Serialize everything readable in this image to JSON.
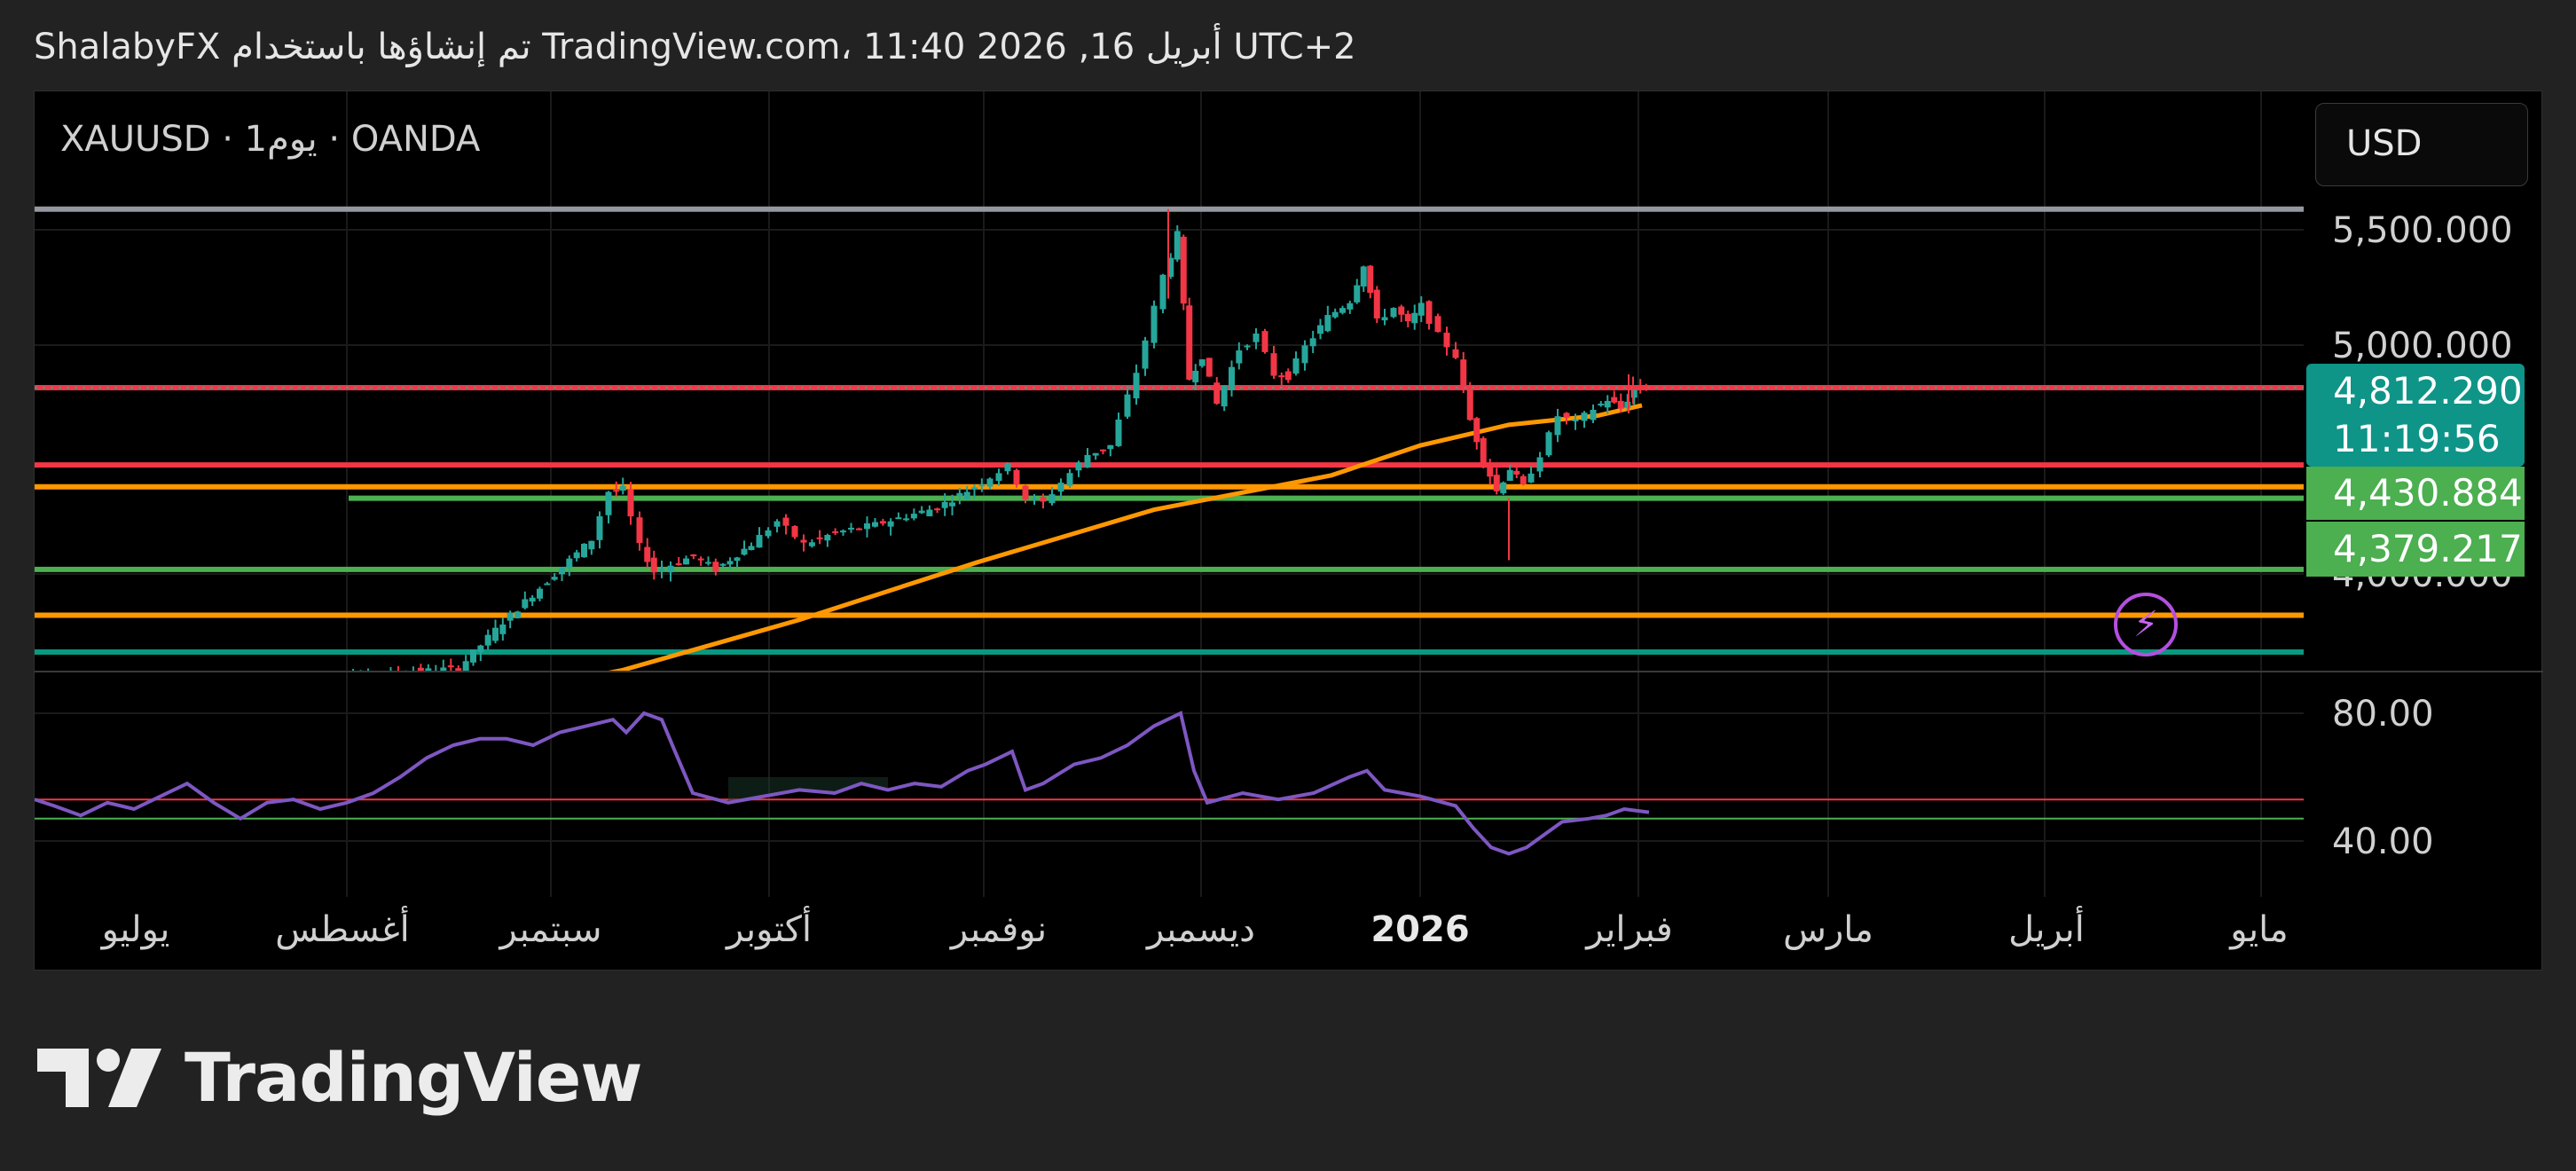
{
  "header": {
    "caption": "ShalabyFX تم إنشاؤها باستخدام TradingView.com، 11:40 2026 ,16 أبريل UTC+2"
  },
  "chart_header": {
    "symbol_line": "XAUUSD · 1يوم · OANDA",
    "currency": "USD"
  },
  "price_tags": {
    "last_price": "4,812.290",
    "countdown": "11:19:56",
    "level_1": "4,430.884",
    "level_2": "4,379.217"
  },
  "logo": {
    "text": "TradingView",
    "icon": "tradingview-logo-icon"
  },
  "colors": {
    "up": "#26a69a",
    "down": "#f23645",
    "ma": "#ff9800",
    "rsi": "#7e57c2",
    "red_line": "#f23645",
    "green_line": "#4caf50",
    "orange_line": "#ff9800",
    "teal_line": "#089981",
    "gray_line": "#9598a1"
  },
  "chart_data": {
    "type": "candlestick",
    "symbol": "XAUUSD",
    "interval": "1D",
    "broker": "OANDA",
    "x_ticks": [
      {
        "label": "يوليو",
        "bold": false
      },
      {
        "label": "أغسطس",
        "bold": false
      },
      {
        "label": "سبتمبر",
        "bold": false
      },
      {
        "label": "أكتوبر",
        "bold": false
      },
      {
        "label": "نوفمبر",
        "bold": false
      },
      {
        "label": "ديسمبر",
        "bold": false
      },
      {
        "label": "2026",
        "bold": true
      },
      {
        "label": "فبراير",
        "bold": false
      },
      {
        "label": "مارس",
        "bold": false
      },
      {
        "label": "أبريل",
        "bold": false
      },
      {
        "label": "مايو",
        "bold": false
      }
    ],
    "price_axis": {
      "ticks": [
        "5,500.000",
        "5,000.000",
        "4,000.000"
      ],
      "ylim": [
        3500,
        5760
      ]
    },
    "rsi_axis": {
      "ticks": [
        "80.00",
        "40.00"
      ],
      "ylim": [
        25,
        90
      ],
      "levels": [
        53,
        47
      ]
    },
    "horizontal_lines": [
      {
        "price": 5590,
        "color": "gray"
      },
      {
        "price": 4812,
        "color": "red"
      },
      {
        "price": 4475,
        "color": "red"
      },
      {
        "price": 4380,
        "color": "orange"
      },
      {
        "price": 4330,
        "color": "green"
      },
      {
        "price": 4020,
        "color": "green"
      },
      {
        "price": 3820,
        "color": "orange"
      },
      {
        "price": 3660,
        "color": "teal"
      }
    ],
    "segments": [
      {
        "start": 342,
        "end": 520,
        "close": 3590,
        "up": 1
      },
      {
        "start": 520,
        "end": 570,
        "close": 3790,
        "up": 1
      },
      {
        "start": 570,
        "end": 670,
        "close": 4150,
        "up": 1
      },
      {
        "start": 670,
        "end": 690,
        "close": 4360,
        "up": 1
      },
      {
        "start": 690,
        "end": 705,
        "close": 4370,
        "up": 1
      },
      {
        "start": 705,
        "end": 725,
        "close": 4120,
        "up": -1
      },
      {
        "start": 725,
        "end": 740,
        "close": 4010,
        "up": -1
      },
      {
        "start": 740,
        "end": 760,
        "close": 4040,
        "up": 1
      },
      {
        "start": 760,
        "end": 785,
        "close": 4080,
        "up": 1
      },
      {
        "start": 785,
        "end": 810,
        "close": 4020,
        "up": -1
      },
      {
        "start": 810,
        "end": 850,
        "close": 4130,
        "up": 1
      },
      {
        "start": 850,
        "end": 880,
        "close": 4230,
        "up": 1
      },
      {
        "start": 880,
        "end": 910,
        "close": 4130,
        "up": -1
      },
      {
        "start": 910,
        "end": 945,
        "close": 4180,
        "up": 1
      },
      {
        "start": 945,
        "end": 990,
        "close": 4215,
        "up": 1
      },
      {
        "start": 990,
        "end": 1060,
        "close": 4290,
        "up": 1
      },
      {
        "start": 1060,
        "end": 1110,
        "close": 4400,
        "up": 1
      },
      {
        "start": 1110,
        "end": 1140,
        "close": 4470,
        "up": 1
      },
      {
        "start": 1140,
        "end": 1160,
        "close": 4330,
        "up": -1
      },
      {
        "start": 1160,
        "end": 1180,
        "close": 4310,
        "up": -1
      },
      {
        "start": 1180,
        "end": 1200,
        "close": 4400,
        "up": 1
      },
      {
        "start": 1200,
        "end": 1230,
        "close": 4520,
        "up": 1
      },
      {
        "start": 1230,
        "end": 1255,
        "close": 4560,
        "up": 1
      },
      {
        "start": 1255,
        "end": 1285,
        "close": 4880,
        "up": 1
      },
      {
        "start": 1285,
        "end": 1315,
        "close": 5300,
        "up": 1
      },
      {
        "start": 1315,
        "end": 1330,
        "close": 5480,
        "up": 1
      },
      {
        "start": 1330,
        "end": 1343,
        "close": 4850,
        "up": -1
      },
      {
        "start": 1343,
        "end": 1358,
        "close": 4950,
        "up": 1
      },
      {
        "start": 1358,
        "end": 1375,
        "close": 4740,
        "up": -1
      },
      {
        "start": 1375,
        "end": 1400,
        "close": 4980,
        "up": 1
      },
      {
        "start": 1400,
        "end": 1420,
        "close": 5040,
        "up": 1
      },
      {
        "start": 1420,
        "end": 1440,
        "close": 4870,
        "up": -1
      },
      {
        "start": 1440,
        "end": 1455,
        "close": 4860,
        "up": -1
      },
      {
        "start": 1455,
        "end": 1475,
        "close": 4990,
        "up": 1
      },
      {
        "start": 1475,
        "end": 1500,
        "close": 5120,
        "up": 1
      },
      {
        "start": 1500,
        "end": 1525,
        "close": 5190,
        "up": 1
      },
      {
        "start": 1525,
        "end": 1540,
        "close": 5350,
        "up": 1
      },
      {
        "start": 1540,
        "end": 1555,
        "close": 5100,
        "up": -1
      },
      {
        "start": 1555,
        "end": 1575,
        "close": 5160,
        "up": 1
      },
      {
        "start": 1575,
        "end": 1590,
        "close": 5090,
        "up": -1
      },
      {
        "start": 1590,
        "end": 1605,
        "close": 5170,
        "up": 1
      },
      {
        "start": 1605,
        "end": 1625,
        "close": 5040,
        "up": -1
      },
      {
        "start": 1625,
        "end": 1645,
        "close": 4950,
        "up": -1
      },
      {
        "start": 1645,
        "end": 1660,
        "close": 4670,
        "up": -1
      },
      {
        "start": 1660,
        "end": 1675,
        "close": 4500,
        "up": -1
      },
      {
        "start": 1675,
        "end": 1690,
        "close": 4360,
        "up": -1
      },
      {
        "start": 1690,
        "end": 1705,
        "close": 4460,
        "up": 1
      },
      {
        "start": 1705,
        "end": 1720,
        "close": 4380,
        "up": -1
      },
      {
        "start": 1720,
        "end": 1740,
        "close": 4520,
        "up": 1
      },
      {
        "start": 1740,
        "end": 1760,
        "close": 4690,
        "up": 1
      },
      {
        "start": 1760,
        "end": 1780,
        "close": 4660,
        "up": -1
      },
      {
        "start": 1780,
        "end": 1800,
        "close": 4720,
        "up": 1
      },
      {
        "start": 1800,
        "end": 1815,
        "close": 4760,
        "up": 1
      },
      {
        "start": 1815,
        "end": 1830,
        "close": 4720,
        "up": -1
      },
      {
        "start": 1830,
        "end": 1845,
        "close": 4800,
        "up": 1
      },
      {
        "start": 1845,
        "end": 1858,
        "close": 4812,
        "up": 1
      }
    ],
    "ma": [
      [
        565,
        3480
      ],
      [
        700,
        3580
      ],
      [
        900,
        3800
      ],
      [
        1100,
        4050
      ],
      [
        1300,
        4280
      ],
      [
        1500,
        4430
      ],
      [
        1600,
        4560
      ],
      [
        1700,
        4650
      ],
      [
        1800,
        4690
      ],
      [
        1850,
        4735
      ]
    ],
    "rsi": [
      [
        38,
        53
      ],
      [
        60,
        51
      ],
      [
        90,
        48
      ],
      [
        120,
        52
      ],
      [
        150,
        50
      ],
      [
        180,
        54
      ],
      [
        210,
        58
      ],
      [
        240,
        52
      ],
      [
        270,
        47
      ],
      [
        300,
        52
      ],
      [
        330,
        53
      ],
      [
        360,
        50
      ],
      [
        390,
        52
      ],
      [
        420,
        55
      ],
      [
        450,
        60
      ],
      [
        480,
        66
      ],
      [
        510,
        70
      ],
      [
        540,
        72
      ],
      [
        570,
        72
      ],
      [
        600,
        70
      ],
      [
        630,
        74
      ],
      [
        660,
        76
      ],
      [
        690,
        78
      ],
      [
        705,
        74
      ],
      [
        725,
        80
      ],
      [
        745,
        78
      ],
      [
        760,
        68
      ],
      [
        780,
        55
      ],
      [
        820,
        52
      ],
      [
        860,
        54
      ],
      [
        900,
        56
      ],
      [
        940,
        55
      ],
      [
        970,
        58
      ],
      [
        1000,
        56
      ],
      [
        1030,
        58
      ],
      [
        1060,
        57
      ],
      [
        1090,
        62
      ],
      [
        1110,
        64
      ],
      [
        1140,
        68
      ],
      [
        1155,
        56
      ],
      [
        1175,
        58
      ],
      [
        1210,
        64
      ],
      [
        1240,
        66
      ],
      [
        1270,
        70
      ],
      [
        1300,
        76
      ],
      [
        1330,
        80
      ],
      [
        1345,
        62
      ],
      [
        1360,
        52
      ],
      [
        1400,
        55
      ],
      [
        1440,
        53
      ],
      [
        1480,
        55
      ],
      [
        1520,
        60
      ],
      [
        1540,
        62
      ],
      [
        1560,
        56
      ],
      [
        1600,
        54
      ],
      [
        1640,
        51
      ],
      [
        1660,
        44
      ],
      [
        1680,
        38
      ],
      [
        1700,
        36
      ],
      [
        1720,
        38
      ],
      [
        1740,
        42
      ],
      [
        1760,
        46
      ],
      [
        1790,
        47
      ],
      [
        1810,
        48
      ],
      [
        1830,
        50
      ],
      [
        1858,
        49
      ]
    ]
  }
}
